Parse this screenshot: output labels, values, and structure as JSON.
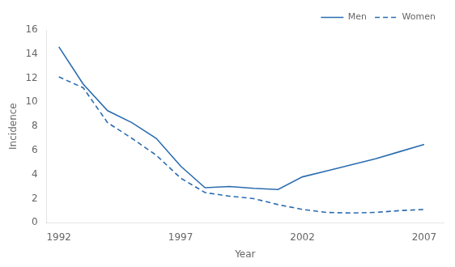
{
  "chart_data": {
    "type": "line",
    "x": [
      1992,
      1993,
      1994,
      1995,
      1996,
      1997,
      1998,
      1999,
      2000,
      2001,
      2002,
      2003,
      2004,
      2005,
      2006,
      2007
    ],
    "series": [
      {
        "name": "Men",
        "color": "#2B6CB0",
        "line_style": "solid",
        "values": [
          14.6,
          11.5,
          9.3,
          8.3,
          7.0,
          4.7,
          2.9,
          3.0,
          2.85,
          2.75,
          3.8,
          4.3,
          4.8,
          5.3,
          5.9,
          6.5
        ]
      },
      {
        "name": "Women",
        "color": "#2B6CB0",
        "line_style": "dashed",
        "values": [
          12.1,
          11.2,
          8.3,
          7.0,
          5.6,
          3.7,
          2.5,
          2.2,
          2.0,
          1.5,
          1.1,
          0.85,
          0.8,
          0.85,
          1.0,
          1.1
        ]
      }
    ],
    "xlabel": "Year",
    "ylabel": "Incidence",
    "xlim": [
      1991.5,
      2007.8
    ],
    "ylim": [
      0,
      16
    ],
    "xticks": [
      1992,
      1997,
      2002,
      2007
    ],
    "yticks": [
      0,
      2,
      4,
      6,
      8,
      10,
      12,
      14,
      16
    ],
    "grid": false,
    "legend": "upper right"
  }
}
